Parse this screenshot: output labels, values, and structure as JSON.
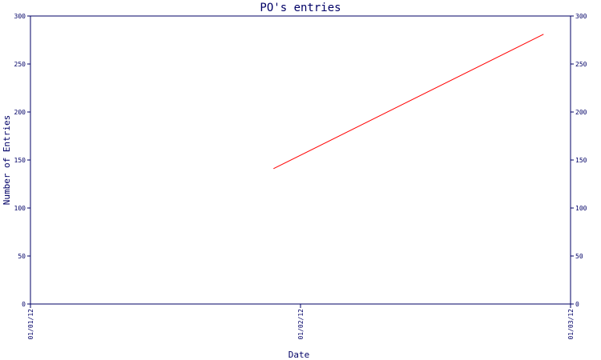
{
  "chart_data": {
    "type": "line",
    "title": "PO's entries",
    "xlabel": "Date",
    "ylabel": "Number of Entries",
    "x_categories": [
      "01/01/12",
      "01/02/12",
      "01/03/12"
    ],
    "ylim": [
      0,
      300
    ],
    "yticks": [
      0,
      50,
      100,
      150,
      200,
      250,
      300
    ],
    "grid": false,
    "series": [
      {
        "color": "#ff0000",
        "points": [
          {
            "x": "01/02/12",
            "y": 141
          },
          {
            "x": "01/03/12",
            "y": 281
          }
        ]
      }
    ]
  }
}
